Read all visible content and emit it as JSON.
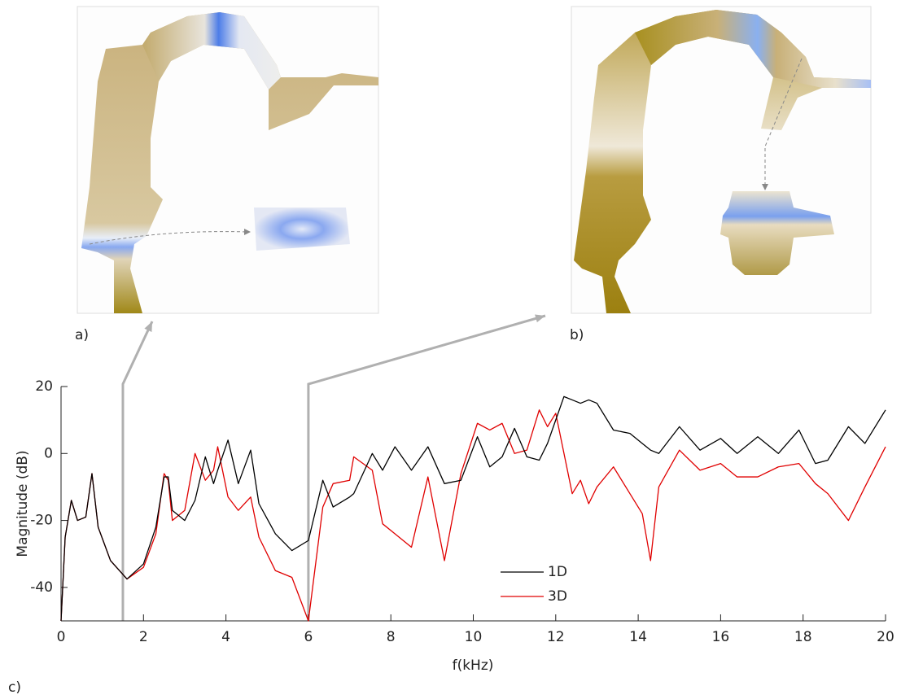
{
  "chart_data": {
    "type": "line",
    "panel_labels": [
      "a)",
      "b)",
      "c)"
    ],
    "xlabel": "f(kHz)",
    "ylabel": "Magnitude (dB)",
    "x": [
      0,
      0.1,
      0.25,
      0.4,
      0.6,
      0.75,
      0.9,
      1.2,
      1.6,
      2.0,
      2.3,
      2.5,
      2.6,
      2.7,
      3.0,
      3.25,
      3.5,
      3.7,
      3.8,
      4.05,
      4.3,
      4.6,
      4.8,
      5.2,
      5.6,
      6.0,
      6.35,
      6.6,
      7.0,
      7.1,
      7.55,
      7.8,
      8.1,
      8.5,
      8.9,
      9.3,
      9.7,
      10.1,
      10.4,
      10.7,
      11.0,
      11.3,
      11.6,
      11.8,
      12.0,
      12.2,
      12.4,
      12.6,
      12.8,
      13.0,
      13.4,
      13.8,
      14.1,
      14.3,
      14.5,
      15.0,
      15.5,
      16.0,
      16.4,
      16.9,
      17.4,
      17.9,
      18.3,
      18.6,
      19.1,
      19.5,
      20
    ],
    "series": [
      {
        "name": "1D",
        "color": "#000000",
        "values": [
          -50,
          -25,
          -14,
          -20,
          -19,
          -6,
          -22,
          -32,
          -37.5,
          -33,
          -22,
          -7,
          -7,
          -17,
          -20,
          -14,
          -1,
          -9,
          -5,
          4,
          -9,
          1,
          -15,
          -24,
          -29,
          -26,
          -8,
          -16,
          -13,
          -12,
          0,
          -5,
          2,
          -5,
          2,
          -9,
          -8,
          5,
          -4,
          -1,
          7.5,
          -1,
          -2,
          3,
          10,
          17,
          16,
          15,
          16,
          15,
          7,
          6,
          3,
          1,
          0,
          8,
          1,
          4.5,
          0,
          5,
          0,
          7,
          -3,
          -2,
          8,
          3,
          13
        ]
      },
      {
        "name": "3D",
        "color": "#e00000",
        "values": [
          -50,
          -25,
          -14,
          -20,
          -19,
          -6,
          -22,
          -32,
          -37.5,
          -34,
          -24,
          -6,
          -8,
          -20,
          -17,
          0,
          -8,
          -5,
          2,
          -13,
          -17,
          -13,
          -25,
          -35,
          -37,
          -50,
          -16,
          -9,
          -8,
          -1,
          -5,
          -21,
          -24,
          -28,
          -7,
          -32,
          -6,
          9,
          7,
          9,
          0,
          1,
          13,
          8,
          12,
          0,
          -12,
          -8,
          -15,
          -10,
          -4,
          -12,
          -18,
          -32,
          -10,
          1,
          -5,
          -3,
          -7,
          -7,
          -4,
          -3,
          -9,
          -12,
          -20,
          -10,
          2
        ]
      }
    ],
    "highlighted_x": [
      1.5,
      6
    ],
    "xlim": [
      0,
      20
    ],
    "xticks": [
      0,
      2,
      4,
      6,
      8,
      10,
      12,
      14,
      16,
      18,
      20
    ],
    "ylim": [
      -50,
      20
    ],
    "yticks": [
      -40,
      -20,
      0,
      20
    ]
  }
}
